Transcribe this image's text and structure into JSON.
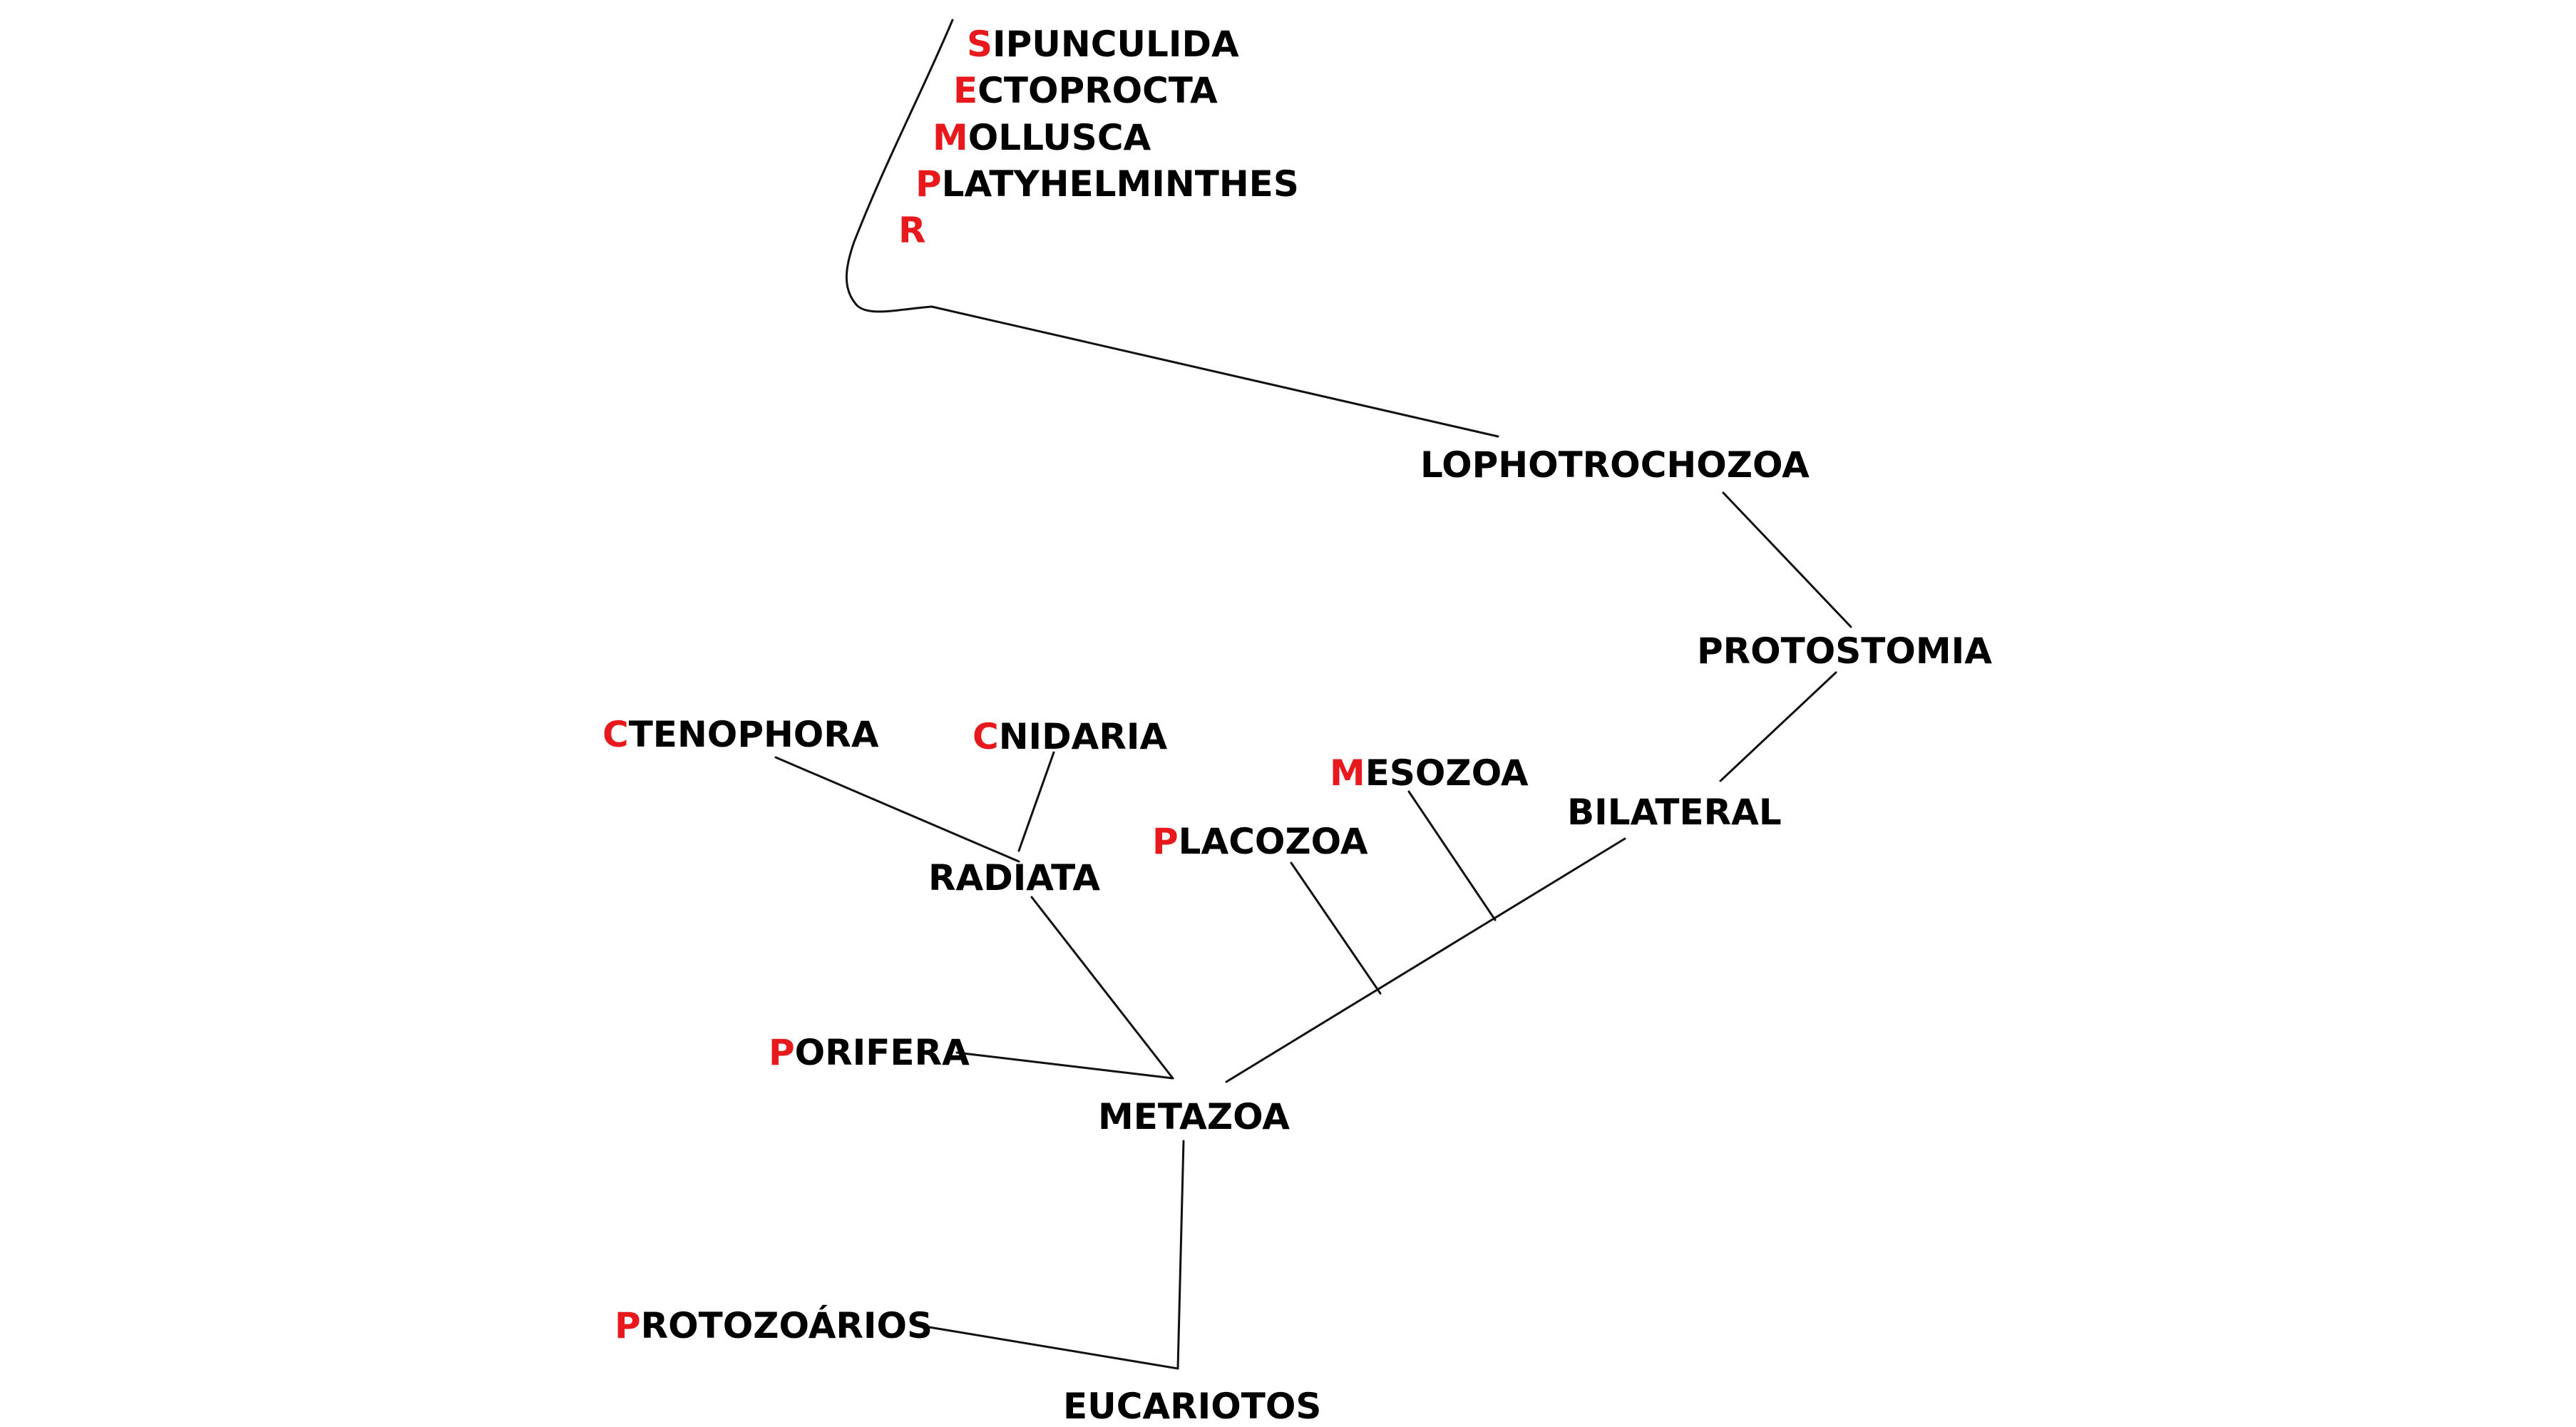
{
  "colors": {
    "line": "#111111",
    "text": "#000000",
    "initial_letter": "#e8191c"
  },
  "nodes": {
    "eucariotos": {
      "text": "EUCARIOTOS"
    },
    "protozoarios": {
      "first": "P",
      "rest": "ROTOZOÁRIOS"
    },
    "metazoa": {
      "text": "METAZOA"
    },
    "porifera": {
      "first": "P",
      "rest": "ORIFERA"
    },
    "radiata": {
      "text": "RADIATA"
    },
    "ctenophora": {
      "first": "C",
      "rest": "TENOPHORA"
    },
    "cnidaria": {
      "first": "C",
      "rest": "NIDARIA"
    },
    "placozoa": {
      "first": "P",
      "rest": "LACOZOA"
    },
    "mesozoa": {
      "first": "M",
      "rest": "ESOZOA"
    },
    "bilateral": {
      "text": "BILATERAL"
    },
    "protostomia": {
      "text": "PROTOSTOMIA"
    },
    "lophotrochozoa": {
      "text": "LOPHOTROCHOZOA"
    },
    "sipunculida": {
      "first": "S",
      "rest": "IPUNCULIDA"
    },
    "ectoprocta": {
      "first": "E",
      "rest": "CTOPROCTA"
    },
    "mollusca": {
      "first": "M",
      "rest": "OLLUSCA"
    },
    "platyhelminthes": {
      "first": "P",
      "rest": "LATYHELMINTHES"
    },
    "r_item": {
      "first": "R",
      "rest": ""
    }
  }
}
